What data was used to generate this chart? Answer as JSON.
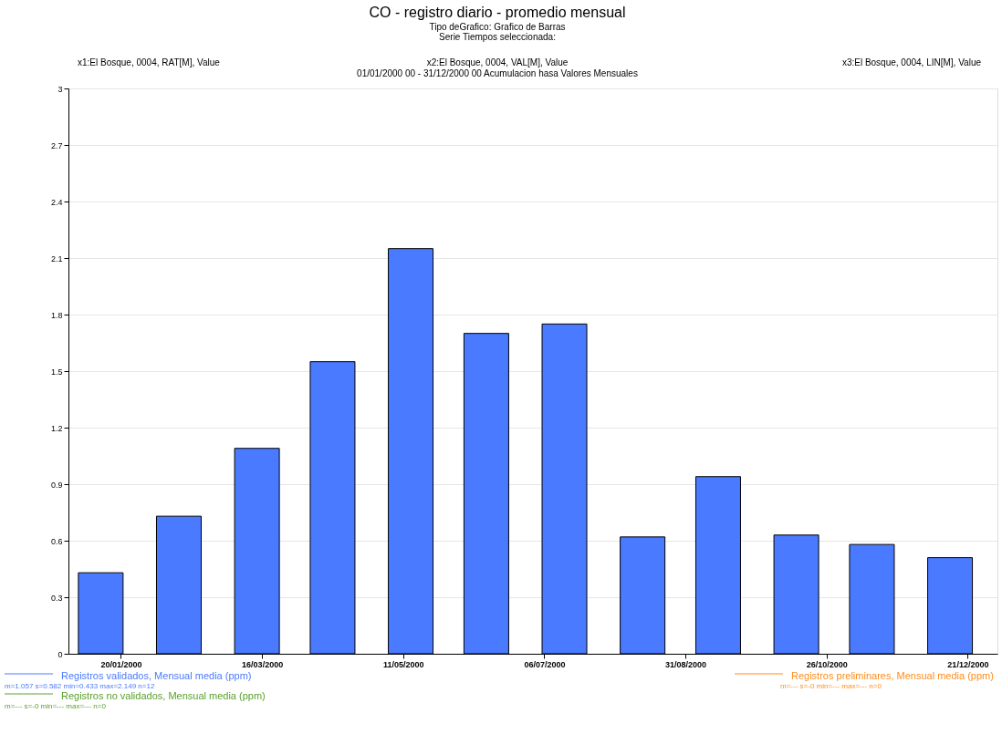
{
  "chart_data": {
    "type": "bar",
    "title": "CO - registro diario - promedio mensual",
    "subtitle": "Tipo deGrafico: Grafico de Barras\nSerie Tiempos seleccionada:",
    "annotations": [
      "x1:El Bosque, 0004, RAT[M], Value",
      "x2:El Bosque, 0004, VAL[M], Value",
      "x3:El Bosque, 0004, LIN[M], Value",
      "01/01/2000 00 - 31/12/2000 00  Acumulacion hasa Valores Mensuales",
      "m=1.057 s=0.582 min=0.433 max=2.149 n=12",
      "m=--- s=-0 min=--- max=--- n=0",
      "m=--- s=-0 min=--- max=--- n=0"
    ],
    "x": [
      "2000-01-12",
      "2000-02-12",
      "2000-03-14",
      "2000-04-13",
      "2000-05-14",
      "2000-06-13",
      "2000-07-14",
      "2000-08-14",
      "2000-09-13",
      "2000-10-14",
      "2000-11-13",
      "2000-12-14"
    ],
    "series": [
      {
        "name": "Registros validados, Mensual media (ppm)",
        "color": "#4a7aff",
        "values": [
          0.43,
          0.73,
          1.09,
          1.55,
          2.15,
          1.7,
          1.75,
          0.62,
          0.94,
          0.63,
          0.58,
          0.51
        ]
      },
      {
        "name": "Registros preliminares, Mensual media (ppm)",
        "color": "#ff8c1a",
        "values": [
          null,
          null,
          null,
          null,
          null,
          null,
          null,
          null,
          null,
          null,
          null,
          null
        ]
      },
      {
        "name": "Registros no validados, Mensual media (ppm)",
        "color": "#5aa02c",
        "values": [
          null,
          null,
          null,
          null,
          null,
          null,
          null,
          null,
          null,
          null,
          null,
          null
        ]
      }
    ],
    "xlim": [
      "2000-01-01",
      "2000-12-31"
    ],
    "xticks": [
      {
        "value": "2000-01-20",
        "label": "20/01/2000"
      },
      {
        "value": "2000-03-16",
        "label": "16/03/2000"
      },
      {
        "value": "2000-05-11",
        "label": "11/05/2000"
      },
      {
        "value": "2000-07-06",
        "label": "06/07/2000"
      },
      {
        "value": "2000-08-31",
        "label": "31/08/2000"
      },
      {
        "value": "2000-10-26",
        "label": "26/10/2000"
      },
      {
        "value": "2000-12-21",
        "label": "21/12/2000"
      }
    ],
    "ylim": [
      0,
      3
    ],
    "yticks": [
      0,
      0.3,
      0.6,
      0.9,
      1.2,
      1.5,
      1.8,
      2.1,
      2.4,
      2.7,
      3
    ],
    "grid": "y",
    "legend": "bottom"
  }
}
